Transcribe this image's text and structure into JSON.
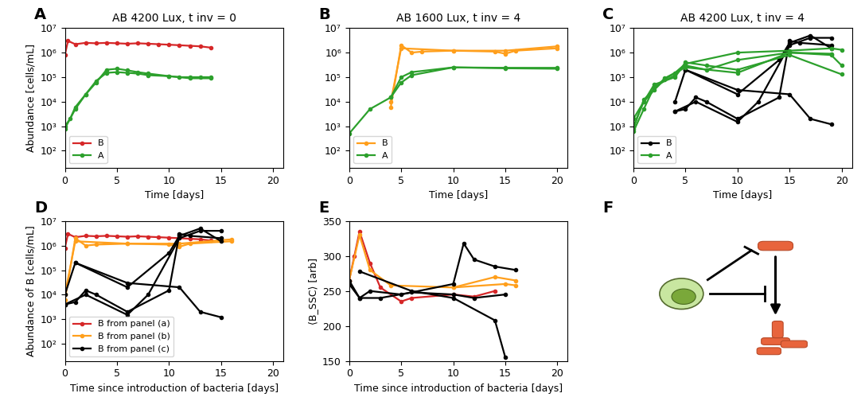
{
  "chart_data": [
    {
      "panel": "A",
      "type": "line",
      "title": "AB 4200 Lux, t inv = 0",
      "xlabel": "Time [days]",
      "ylabel": "Abundance [cells/mL]",
      "log": "y",
      "xlim": [
        0,
        21
      ],
      "xticks": [
        0,
        5,
        10,
        15,
        20
      ],
      "ylim": [
        20,
        10000000
      ],
      "yticks": [
        {
          "value": 100,
          "label": "10²"
        },
        {
          "value": 1000,
          "label": "10³"
        },
        {
          "value": 10000,
          "label": "10⁴"
        },
        {
          "value": 100000,
          "label": "10⁵"
        },
        {
          "value": 1000000,
          "label": "10⁶"
        },
        {
          "value": 10000000,
          "label": "10⁷"
        }
      ],
      "legend": "lower left",
      "marker": "o",
      "series": [
        {
          "name": "B",
          "color": "#d62728",
          "x": [
            0,
            0.3,
            1,
            2,
            3,
            4,
            5,
            6,
            7,
            8,
            9,
            10,
            11,
            12,
            13,
            14
          ],
          "values": [
            800000,
            3000000,
            2200000,
            2500000,
            2400000,
            2500000,
            2400000,
            2300000,
            2400000,
            2300000,
            2200000,
            2100000,
            2000000,
            1900000,
            1800000,
            1600000
          ]
        },
        {
          "name": "A",
          "color": "#2ca02c",
          "x": [
            0,
            0.5,
            1,
            2,
            3,
            4,
            5,
            6,
            7,
            8,
            10,
            11,
            12,
            13,
            14
          ],
          "values": [
            1000,
            2000,
            6000,
            20000,
            60000,
            200000,
            220000,
            190000,
            160000,
            140000,
            110000,
            100000,
            100000,
            100000,
            100000
          ]
        },
        {
          "name": "A",
          "color": "#2ca02c",
          "x": [
            0,
            1,
            2,
            3,
            4,
            5,
            6,
            7,
            8,
            10,
            12,
            14
          ],
          "values": [
            800,
            5000,
            20000,
            70000,
            150000,
            160000,
            150000,
            140000,
            120000,
            110000,
            90000,
            90000
          ]
        }
      ]
    },
    {
      "panel": "B",
      "type": "line",
      "title": "AB 1600 Lux, t inv = 4",
      "xlabel": "Time [days]",
      "log": "y",
      "xlim": [
        0,
        21
      ],
      "xticks": [
        0,
        5,
        10,
        15,
        20
      ],
      "ylim": [
        20,
        10000000
      ],
      "yticks": [
        {
          "value": 100,
          "label": "10²"
        },
        {
          "value": 1000,
          "label": "10³"
        },
        {
          "value": 10000,
          "label": "10⁴"
        },
        {
          "value": 100000,
          "label": "10⁵"
        },
        {
          "value": 1000000,
          "label": "10⁶"
        },
        {
          "value": 10000000,
          "label": "10⁷"
        }
      ],
      "legend": "lower left",
      "marker": "o",
      "series": [
        {
          "name": "B",
          "color": "#ff9f1c",
          "x": [
            4,
            5,
            6,
            7,
            10,
            14,
            15,
            16,
            20
          ],
          "values": [
            6000,
            2000000,
            1000000,
            1100000,
            1200000,
            1100000,
            900000,
            1200000,
            1500000
          ]
        },
        {
          "name": "B",
          "color": "#ff9f1c",
          "x": [
            4,
            5,
            10,
            15,
            20
          ],
          "values": [
            10000,
            1500000,
            1200000,
            1200000,
            1800000
          ]
        },
        {
          "name": "A",
          "color": "#2ca02c",
          "x": [
            0,
            2,
            4,
            5,
            6,
            10,
            15,
            20
          ],
          "values": [
            500,
            5000,
            15000,
            60000,
            120000,
            250000,
            230000,
            220000
          ]
        },
        {
          "name": "A",
          "color": "#2ca02c",
          "x": [
            4,
            5,
            6,
            10,
            15,
            20
          ],
          "values": [
            15000,
            100000,
            160000,
            250000,
            240000,
            240000
          ]
        }
      ]
    },
    {
      "panel": "C",
      "type": "line",
      "title": "AB 4200 Lux, t inv = 4",
      "xlabel": "Time [days]",
      "log": "y",
      "xlim": [
        0,
        21
      ],
      "xticks": [
        0,
        5,
        10,
        15,
        20
      ],
      "ylim": [
        20,
        10000000
      ],
      "yticks": [
        {
          "value": 100,
          "label": "10²"
        },
        {
          "value": 1000,
          "label": "10³"
        },
        {
          "value": 10000,
          "label": "10⁴"
        },
        {
          "value": 100000,
          "label": "10⁵"
        },
        {
          "value": 1000000,
          "label": "10⁶"
        },
        {
          "value": 10000000,
          "label": "10⁷"
        }
      ],
      "legend": "lower left",
      "marker": "o",
      "series": [
        {
          "name": "B",
          "color": "#000000",
          "x": [
            4,
            5,
            6,
            7,
            10,
            14,
            15,
            16,
            19
          ],
          "values": [
            4000,
            5000,
            15000,
            10000,
            2000,
            15000,
            3000000,
            2500000,
            2000000
          ]
        },
        {
          "name": "B",
          "color": "#000000",
          "x": [
            4,
            5,
            10,
            14,
            15,
            17,
            19
          ],
          "values": [
            10000,
            200000,
            20000,
            500000,
            2500000,
            5000000,
            1500000
          ]
        },
        {
          "name": "B",
          "color": "#000000",
          "x": [
            4,
            6,
            10,
            12,
            15,
            17,
            19
          ],
          "values": [
            4000,
            10000,
            1500,
            10000,
            2000000,
            4000000,
            4000000
          ]
        },
        {
          "name": "B",
          "color": "#000000",
          "x": [
            5,
            10,
            15,
            17,
            19
          ],
          "values": [
            200000,
            30000,
            20000,
            2000,
            1200
          ]
        },
        {
          "name": "A",
          "color": "#2ca02c",
          "x": [
            0,
            1,
            2,
            3,
            4,
            5,
            10,
            15,
            19,
            20
          ],
          "values": [
            1000,
            10000,
            30000,
            80000,
            150000,
            350000,
            1000000,
            1200000,
            1500000,
            1300000
          ]
        },
        {
          "name": "A",
          "color": "#2ca02c",
          "x": [
            0,
            1,
            2,
            4,
            5,
            7,
            10,
            15,
            19,
            20
          ],
          "values": [
            600,
            5000,
            40000,
            120000,
            300000,
            200000,
            500000,
            1000000,
            800000,
            300000
          ]
        },
        {
          "name": "A",
          "color": "#2ca02c",
          "x": [
            0,
            2,
            4,
            5,
            7,
            10,
            15,
            20
          ],
          "values": [
            2000,
            50000,
            100000,
            400000,
            300000,
            200000,
            800000,
            130000
          ]
        },
        {
          "name": "A",
          "color": "#2ca02c",
          "x": [
            0,
            1,
            3,
            5,
            10,
            15,
            19
          ],
          "values": [
            800,
            12000,
            90000,
            250000,
            150000,
            1000000,
            900000
          ]
        }
      ]
    },
    {
      "panel": "D",
      "type": "line",
      "xlabel": "Time since introduction of bacteria [days]",
      "ylabel": "Abundance of B [cells/mL]",
      "log": "y",
      "xlim": [
        0,
        21
      ],
      "xticks": [
        0,
        5,
        10,
        15,
        20
      ],
      "ylim": [
        20,
        10000000
      ],
      "yticks": [
        {
          "value": 100,
          "label": "10²"
        },
        {
          "value": 1000,
          "label": "10³"
        },
        {
          "value": 10000,
          "label": "10⁴"
        },
        {
          "value": 100000,
          "label": "10⁵"
        },
        {
          "value": 1000000,
          "label": "10⁶"
        },
        {
          "value": 10000000,
          "label": "10⁷"
        }
      ],
      "legend": "lower left",
      "marker": "o",
      "series": [
        {
          "name": "B from panel (a)",
          "color": "#d62728",
          "x": [
            0,
            0.3,
            1,
            2,
            3,
            4,
            5,
            6,
            7,
            8,
            9,
            10,
            11,
            12,
            13,
            14
          ],
          "values": [
            800000,
            3000000,
            2200000,
            2500000,
            2400000,
            2500000,
            2400000,
            2300000,
            2400000,
            2300000,
            2200000,
            2100000,
            2000000,
            1900000,
            1800000,
            1600000
          ]
        },
        {
          "name": "B from panel (b)",
          "color": "#ff9f1c",
          "x": [
            0,
            1,
            2,
            3,
            6,
            10,
            11,
            12,
            16
          ],
          "values": [
            6000,
            2000000,
            1000000,
            1100000,
            1200000,
            1100000,
            900000,
            1200000,
            1500000
          ]
        },
        {
          "name": "B from panel (b)",
          "color": "#ff9f1c",
          "x": [
            0,
            1,
            6,
            11,
            16
          ],
          "values": [
            10000,
            1500000,
            1200000,
            1200000,
            1800000
          ]
        },
        {
          "name": "B from panel (c)",
          "color": "#000000",
          "x": [
            0,
            1,
            2,
            3,
            6,
            10,
            11,
            12,
            15
          ],
          "values": [
            4000,
            5000,
            15000,
            10000,
            2000,
            15000,
            3000000,
            2500000,
            2000000
          ]
        },
        {
          "name": "B from panel (c)",
          "color": "#000000",
          "x": [
            0,
            1,
            6,
            10,
            11,
            13,
            15
          ],
          "values": [
            10000,
            200000,
            20000,
            500000,
            2500000,
            5000000,
            1500000
          ]
        },
        {
          "name": "B from panel (c)",
          "color": "#000000",
          "x": [
            0,
            2,
            6,
            8,
            11,
            13,
            15
          ],
          "values": [
            4000,
            10000,
            1500,
            10000,
            2000000,
            4000000,
            4000000
          ]
        },
        {
          "name": "B from panel (c)",
          "color": "#000000",
          "x": [
            1,
            6,
            11,
            13,
            15
          ],
          "values": [
            200000,
            30000,
            20000,
            2000,
            1200
          ]
        }
      ]
    },
    {
      "panel": "E",
      "type": "line",
      "xlabel": "Time since introduction of bacteria [days]",
      "ylabel": "⟨B_SSC⟩ [arb]",
      "xlim": [
        0,
        21
      ],
      "xticks": [
        0,
        5,
        10,
        15,
        20
      ],
      "ylim": [
        150,
        350
      ],
      "yticks": [
        150,
        200,
        250,
        300,
        350
      ],
      "marker": "o",
      "series": [
        {
          "name": "B from panel (a)",
          "color": "#d62728",
          "x": [
            0,
            0.5,
            1,
            2,
            3,
            5,
            6,
            10,
            12,
            14
          ],
          "values": [
            265,
            300,
            335,
            290,
            255,
            235,
            240,
            245,
            242,
            250
          ]
        },
        {
          "name": "B from panel (b)",
          "color": "#ff9f1c",
          "x": [
            0,
            1,
            2,
            4,
            10,
            15,
            16
          ],
          "values": [
            265,
            330,
            280,
            258,
            255,
            260,
            258
          ]
        },
        {
          "name": "B from panel (b)",
          "color": "#ff9f1c",
          "x": [
            10,
            14,
            16
          ],
          "values": [
            255,
            270,
            265
          ]
        },
        {
          "name": "B from panel (c)",
          "color": "#000000",
          "x": [
            0,
            1,
            2,
            5,
            10,
            11,
            12,
            14,
            16
          ],
          "values": [
            265,
            240,
            250,
            245,
            260,
            318,
            295,
            285,
            280
          ]
        },
        {
          "name": "B from panel (c)",
          "color": "#000000",
          "x": [
            1,
            6,
            10,
            14,
            15
          ],
          "values": [
            278,
            250,
            240,
            208,
            155
          ]
        },
        {
          "name": "B from panel (c)",
          "color": "#000000",
          "x": [
            0,
            1,
            3,
            6,
            10,
            12,
            15
          ],
          "values": [
            260,
            240,
            240,
            248,
            245,
            240,
            245
          ]
        }
      ]
    },
    {
      "panel": "F",
      "type": "diagram"
    }
  ]
}
